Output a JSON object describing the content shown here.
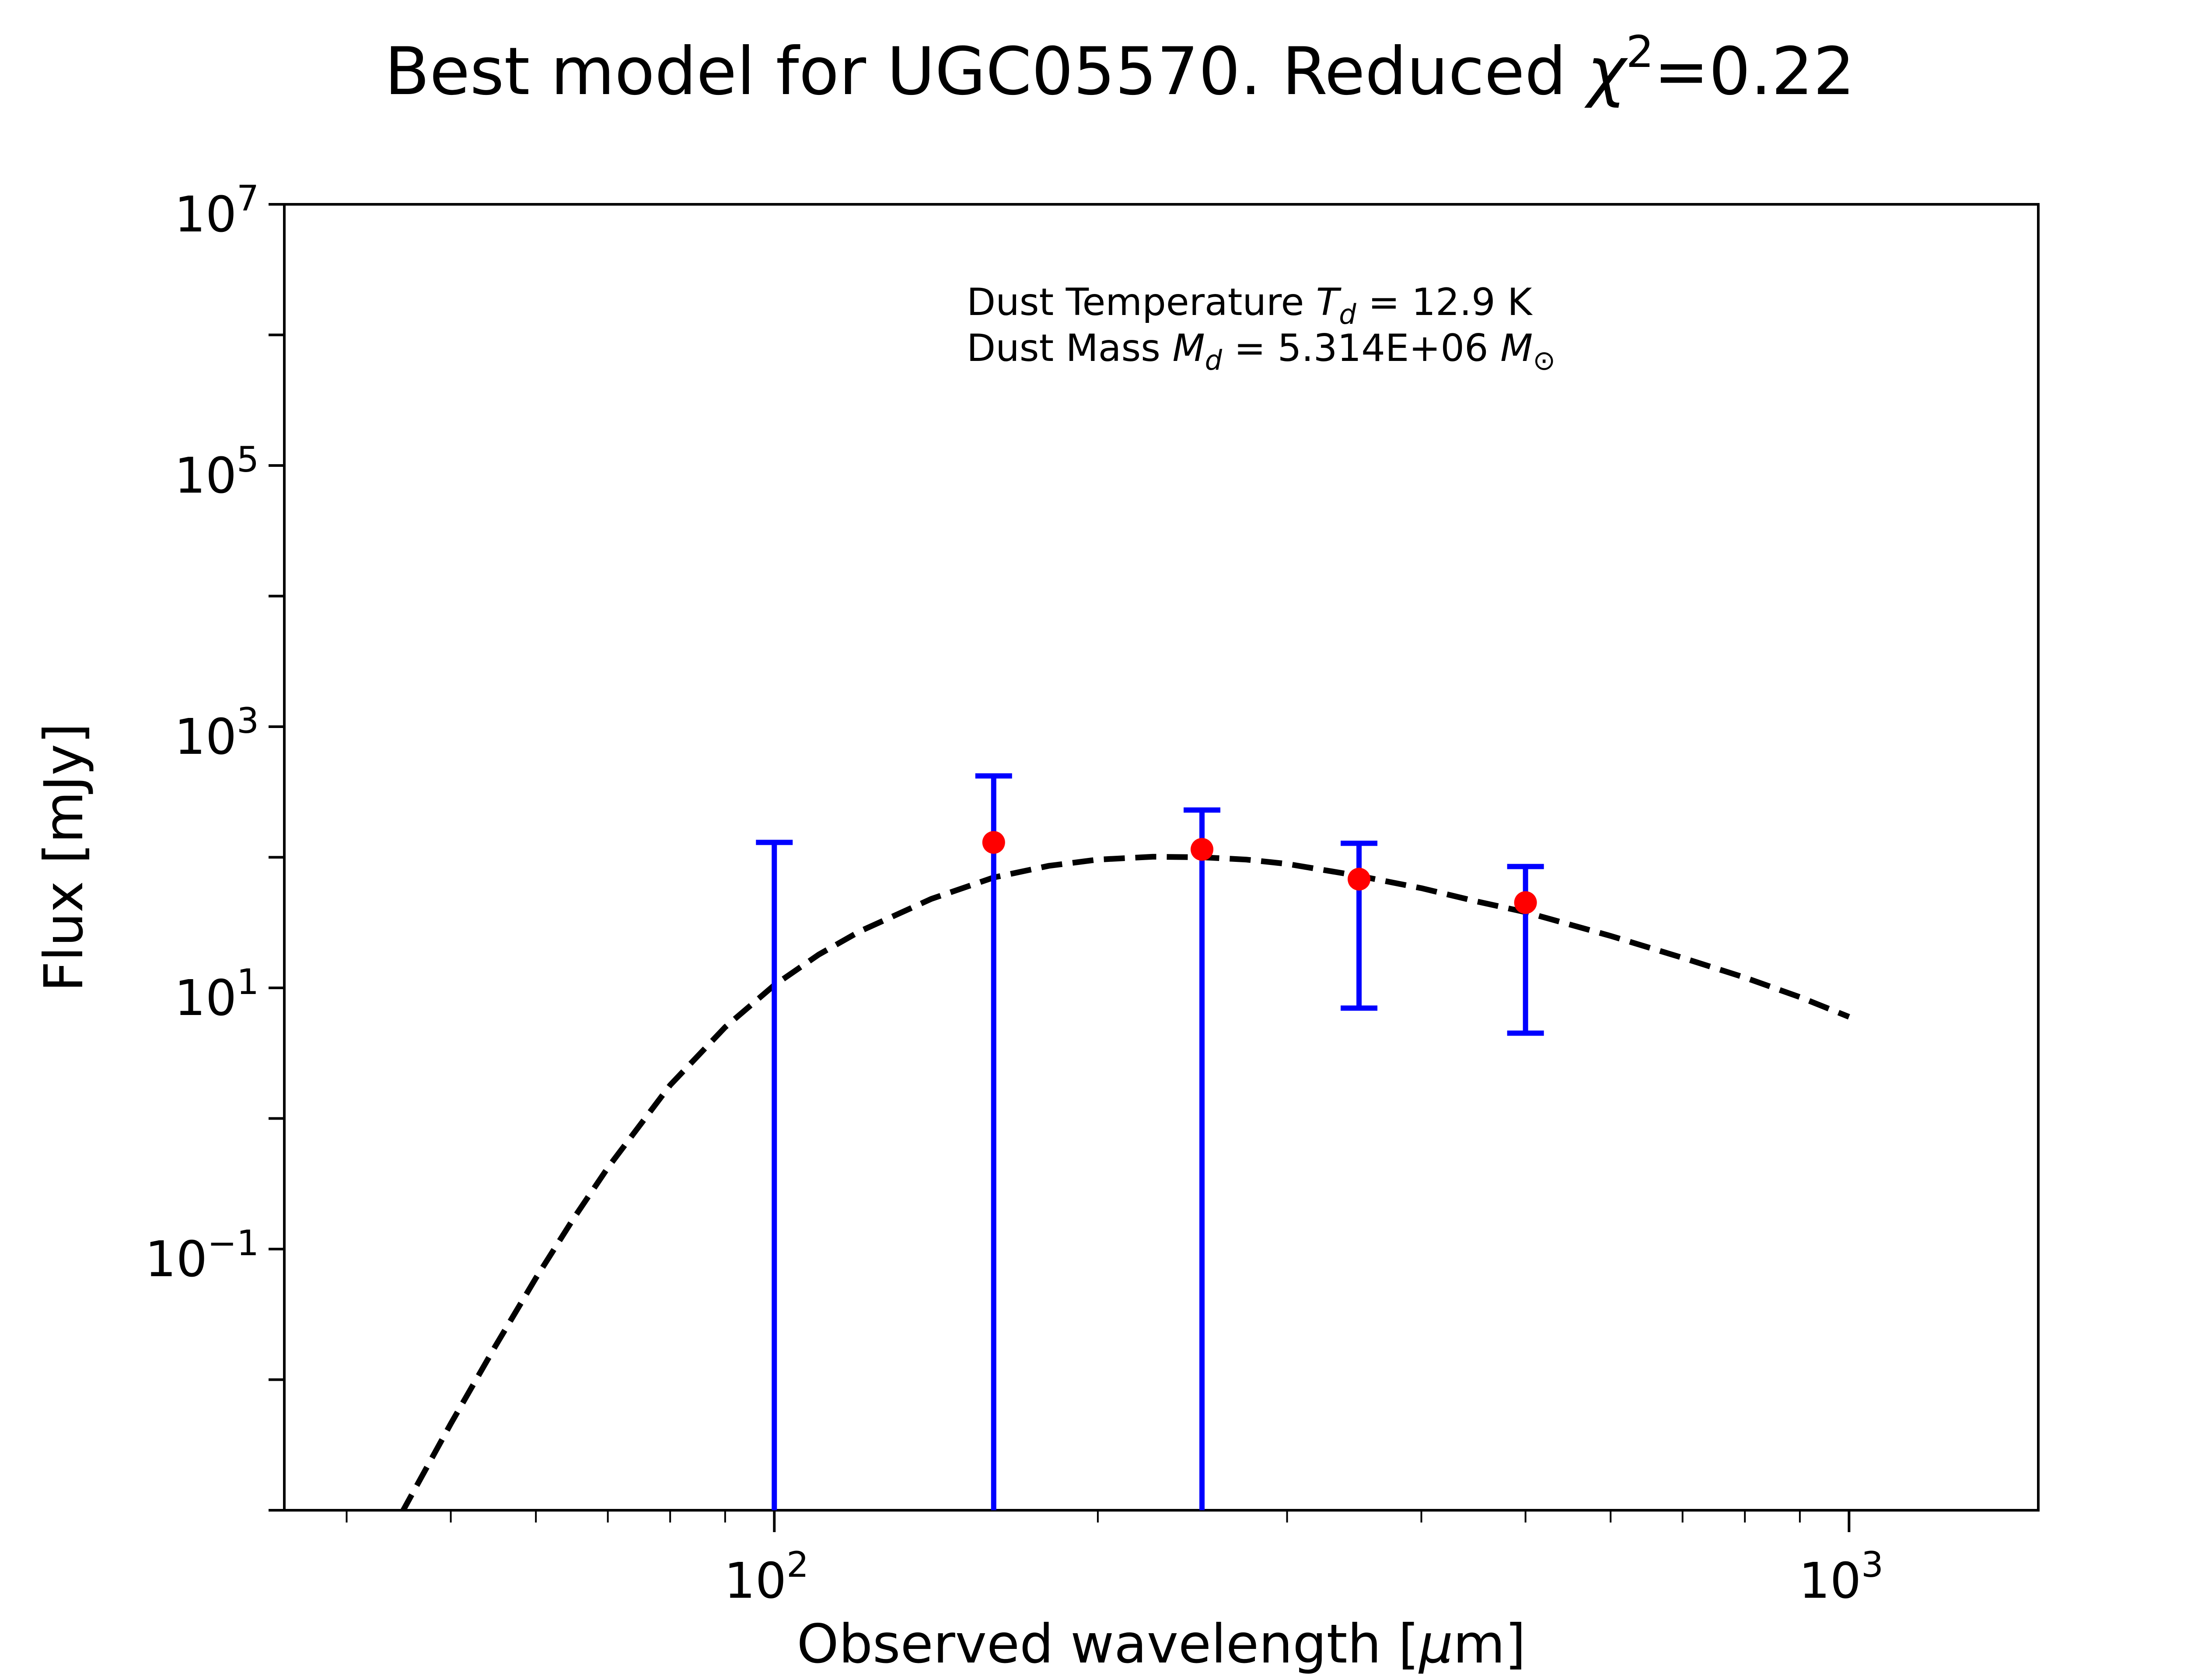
{
  "chart_data": {
    "type": "scatter",
    "title": {
      "prefix": "Best model for UGC05570. Reduced ",
      "symbol": "χ",
      "superscript": "2",
      "suffix": "=0.22"
    },
    "xlabel": {
      "text": "Observed wavelength [",
      "unit": "μ",
      "unit_rest": "m]"
    },
    "ylabel": "Flux [mJy]",
    "xscale": "log",
    "yscale": "log",
    "xlim": [
      35,
      1500
    ],
    "ylim": [
      0.001,
      10000000
    ],
    "x_ticks": [
      {
        "value": 100,
        "base": "10",
        "exp": "2"
      },
      {
        "value": 1000,
        "base": "10",
        "exp": "3"
      }
    ],
    "y_ticks": [
      {
        "value": 0.1,
        "base": "10",
        "exp": "−1"
      },
      {
        "value": 10,
        "base": "10",
        "exp": "1"
      },
      {
        "value": 1000,
        "base": "10",
        "exp": "3"
      },
      {
        "value": 100000,
        "base": "10",
        "exp": "5"
      },
      {
        "value": 10000000,
        "base": "10",
        "exp": "7"
      }
    ],
    "annotations": {
      "line1": {
        "prefix": "Dust Temperature ",
        "sym": "T",
        "sub": "d",
        "suffix": " = 12.9 K"
      },
      "line2": {
        "prefix": "Dust Mass ",
        "sym": "M",
        "sub": "d",
        "mid": " = 5.314E+06 ",
        "sym2": "M",
        "sub2": "⊙"
      }
    },
    "observations": {
      "color": "#ff0000",
      "errorbar_color": "#0000ff",
      "points": [
        {
          "x": 100,
          "y": null,
          "y_low": 0.001,
          "y_high": 130
        },
        {
          "x": 160,
          "y": 130,
          "y_low": 0.001,
          "y_high": 420
        },
        {
          "x": 250,
          "y": 115,
          "y_low": 0.001,
          "y_high": 230
        },
        {
          "x": 350,
          "y": 68,
          "y_low": 7,
          "y_high": 128
        },
        {
          "x": 500,
          "y": 45,
          "y_low": 4.5,
          "y_high": 85
        }
      ]
    },
    "model": {
      "style": "dashed",
      "color": "#000000",
      "x": [
        45,
        50,
        55,
        60,
        65,
        70,
        80,
        90,
        100,
        110,
        120,
        140,
        160,
        180,
        200,
        225,
        250,
        275,
        300,
        350,
        400,
        450,
        500,
        600,
        700,
        800,
        900,
        1000
      ],
      "y": [
        0.00095,
        0.0046,
        0.018,
        0.06,
        0.17,
        0.42,
        1.8,
        5.0,
        10.5,
        18,
        27,
        48,
        70,
        86,
        96,
        101,
        100,
        96,
        89,
        72,
        58,
        46,
        38,
        25,
        17,
        12,
        8.5,
        6.0
      ]
    },
    "grid": false,
    "legend": "none"
  }
}
